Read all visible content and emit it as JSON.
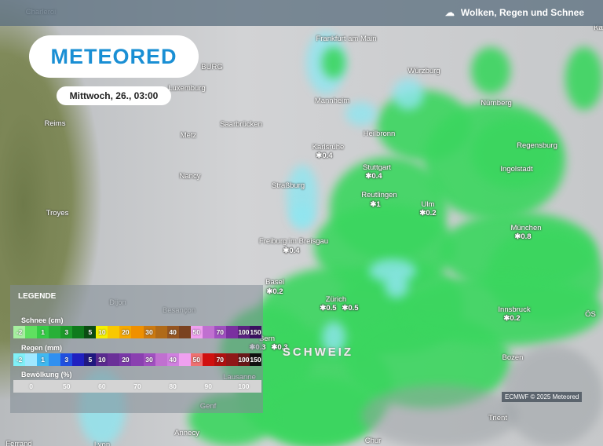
{
  "header": {
    "title": "Wolken, Regen und Schnee",
    "icon": "cloud-rain-icon"
  },
  "brand": {
    "logo": "METEORED"
  },
  "forecast_time": "Mittwoch, 26., 03:00",
  "cities": [
    "Charleroi",
    "Frankfurt am Main",
    "Würzburg",
    "Luxemburg",
    "Mannheim",
    "Nürnberg",
    "Reims",
    "Saarbrücken",
    "Heilbronn",
    "Metz",
    "Karlsruhe",
    "Regensburg",
    "Stuttgart",
    "Ingolstadt",
    "Nancy",
    "Straßburg",
    "Reutlingen",
    "Ulm",
    "Troyes",
    "München",
    "Freiburg im Breisgau",
    "Basel",
    "Zürich",
    "Dijon",
    "Besançon",
    "Innsbruck",
    "Bern",
    "Lausanne",
    "Bozen",
    "Genf",
    "Trient",
    "Annecy",
    "Chur",
    "Lyon",
    "Ferrand",
    "BURG",
    "ÖS",
    "Kä"
  ],
  "country_label": "SCHWEIZ",
  "snow_values": [
    "✱0.4",
    "✱0.4",
    "✱1",
    "✱0.2",
    "✱0.8",
    "✱0.4",
    "✱0.2",
    "✱0.5",
    "✱0.5",
    "✱0.2",
    "✱0.3",
    "✱0.3"
  ],
  "legend": {
    "title": "LEGENDE",
    "snow": {
      "label": "Schnee (cm)",
      "stops": [
        "-2",
        "",
        "1",
        "",
        "3",
        "",
        "5",
        "10",
        "",
        "20",
        "",
        "30",
        "",
        "40",
        "",
        "50",
        "",
        "70",
        "",
        "100",
        "150"
      ],
      "colors": [
        "#a6f0a0",
        "#5fe060",
        "#35cc45",
        "#28b038",
        "#1c9a2a",
        "#0f7a1c",
        "#0b4d12",
        "#f5f000",
        "#f8c800",
        "#f5a800",
        "#ef9000",
        "#cc7a10",
        "#b06a18",
        "#955520",
        "#7a4220",
        "#f0a0f0",
        "#c070d0",
        "#a050c0",
        "#7a30a0",
        "#5a2080",
        "#3a1060"
      ]
    },
    "rain": {
      "label": "Regen (mm)",
      "stops": [
        "-2",
        "",
        "1",
        "",
        "3",
        "",
        "5",
        "10",
        "",
        "20",
        "",
        "30",
        "",
        "40",
        "",
        "50",
        "",
        "70",
        "",
        "100",
        "150"
      ],
      "colors": [
        "#80f0f8",
        "#a0e8ff",
        "#40b8f0",
        "#3090f0",
        "#2050e0",
        "#2020c0",
        "#201880",
        "#5a2a90",
        "#6a3098",
        "#7a38a8",
        "#8a40b0",
        "#a050c0",
        "#c070d0",
        "#d080e0",
        "#f0a0f0",
        "#f07070",
        "#d01010",
        "#b01010",
        "#901818",
        "#6a1818",
        "#101010"
      ]
    },
    "clouds": {
      "label": "Bewölkung (%)",
      "stops": [
        "0",
        "50",
        "60",
        "70",
        "80",
        "90",
        "100"
      ]
    }
  },
  "credit": "ECMWF © 2025 Meteored"
}
